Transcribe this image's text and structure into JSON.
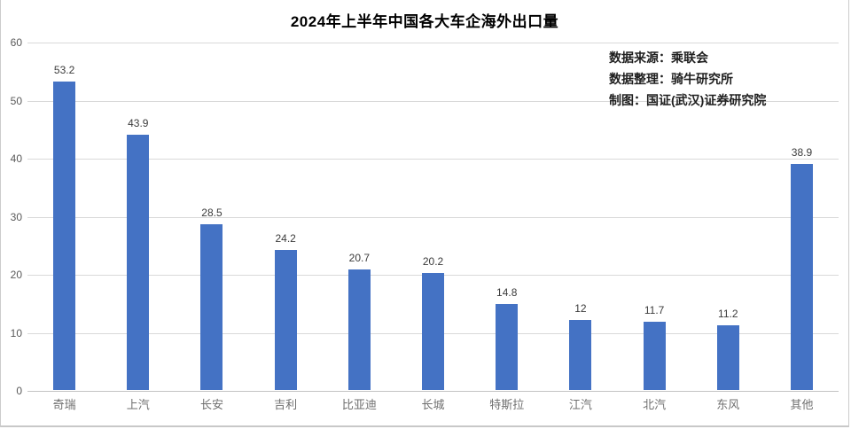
{
  "title": "2024年上半年中国各大车企海外出口量",
  "source_block": {
    "line1": "数据来源：乘联会",
    "line2": "数据整理：骑牛研究所",
    "line3": "制图：国证(武汉)证券研究院"
  },
  "colors": {
    "bar": "#4472C4",
    "gridline": "#d9d9d9",
    "axis_baseline": "#c3c3c3",
    "title_text": "#000000",
    "tick_text": "#595959",
    "category_text": "#6f6f6f",
    "value_text": "#3b3b3b"
  },
  "chart_data": {
    "type": "bar",
    "title": "2024年上半年中国各大车企海外出口量",
    "categories": [
      "奇瑞",
      "上汽",
      "长安",
      "吉利",
      "比亚迪",
      "长城",
      "特斯拉",
      "江汽",
      "北汽",
      "东风",
      "其他"
    ],
    "values": [
      53.2,
      43.9,
      28.5,
      24.2,
      20.7,
      20.2,
      14.8,
      12,
      11.7,
      11.2,
      38.9
    ],
    "value_labels": [
      "53.2",
      "43.9",
      "28.5",
      "24.2",
      "20.7",
      "20.2",
      "14.8",
      "12",
      "11.7",
      "11.2",
      "38.9"
    ],
    "xlabel": "",
    "ylabel": "",
    "ylim": [
      0,
      60
    ],
    "yticks": [
      0,
      10,
      20,
      30,
      40,
      50,
      60
    ],
    "grid": true,
    "legend": false,
    "bar_color": "#4472C4",
    "annotations": [
      "数据来源：乘联会",
      "数据整理：骑牛研究所",
      "制图：国证(武汉)证券研究院"
    ]
  }
}
